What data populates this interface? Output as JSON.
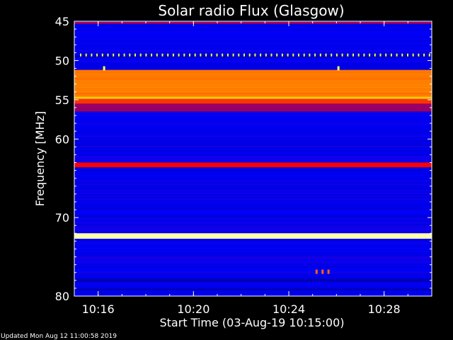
{
  "chart_data": {
    "type": "heatmap",
    "title": "Solar radio Flux (Glasgow)",
    "xlabel": "Start Time (03-Aug-19 10:15:00)",
    "ylabel": "Frequency [MHz]",
    "y_axis": {
      "range_mhz": [
        45,
        80
      ],
      "inverted": true,
      "major_ticks": [
        45,
        50,
        55,
        60,
        70,
        80
      ],
      "tick_labels": [
        "45",
        "50",
        "55",
        "60",
        "70",
        "80"
      ]
    },
    "x_axis": {
      "range": [
        "10:15:00",
        "10:30:00"
      ],
      "major_ticks": [
        "10:16",
        "10:20",
        "10:24",
        "10:28"
      ],
      "tick_labels": [
        "10:16",
        "10:20",
        "10:24",
        "10:28"
      ]
    },
    "colormap": [
      "#000080",
      "#0000ff",
      "#ff0000",
      "#ffff00",
      "#ffffff"
    ],
    "background_level": 0.22,
    "bands": [
      {
        "from_mhz": 45.1,
        "to_mhz": 45.3,
        "level": 0.45
      },
      {
        "from_mhz": 49.3,
        "to_mhz": 49.6,
        "level": 0.1
      },
      {
        "from_mhz": 50.2,
        "to_mhz": 51.2,
        "level": 0.2
      },
      {
        "from_mhz": 51.2,
        "to_mhz": 54.6,
        "level": 0.62
      },
      {
        "from_mhz": 54.6,
        "to_mhz": 54.9,
        "level": 0.7
      },
      {
        "from_mhz": 54.9,
        "to_mhz": 55.5,
        "level": 0.55
      },
      {
        "from_mhz": 55.5,
        "to_mhz": 56.5,
        "level": 0.4
      },
      {
        "from_mhz": 63.0,
        "to_mhz": 63.6,
        "level": 0.5
      },
      {
        "from_mhz": 72.0,
        "to_mhz": 72.7,
        "level": 0.92
      },
      {
        "from_mhz": 77.8,
        "to_mhz": 78.2,
        "level": 0.1
      },
      {
        "from_mhz": 79.0,
        "to_mhz": 79.3,
        "level": 0.12
      }
    ],
    "dashed_line": {
      "mhz": 49.3,
      "level": 0.8
    },
    "spots": [
      {
        "time": "10:16:15",
        "mhz": 51.0,
        "level": 0.85
      },
      {
        "time": "10:26:05",
        "mhz": 51.0,
        "level": 0.85
      },
      {
        "time": "10:25:10",
        "mhz": 76.9,
        "level": 0.6
      },
      {
        "time": "10:25:25",
        "mhz": 76.9,
        "level": 0.6
      },
      {
        "time": "10:25:40",
        "mhz": 76.9,
        "level": 0.6
      }
    ]
  },
  "footer": "Updated Mon Aug 12 11:00:58 2019"
}
